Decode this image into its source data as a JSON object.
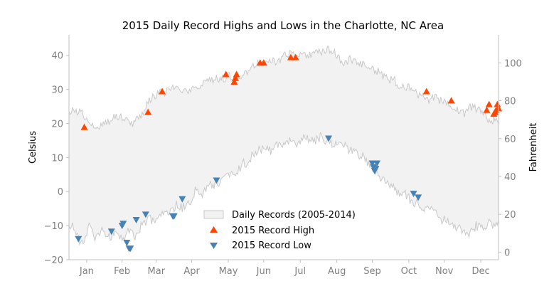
{
  "chart_data": {
    "type": "line",
    "title": "2015 Daily Record Highs and Lows in the Charlotte, NC Area",
    "xlabel": "",
    "ylabel": "Celsius",
    "y2label": "Fahrenheit",
    "ylim": [
      -20,
      46
    ],
    "y2lim": [
      -4,
      114.8
    ],
    "yticks": [
      -20,
      -10,
      0,
      10,
      20,
      30,
      40
    ],
    "y2ticks": [
      0,
      20,
      40,
      60,
      80,
      100
    ],
    "xlim": [
      1,
      365
    ],
    "x_ticks": [
      {
        "label": "Jan",
        "day": 16
      },
      {
        "label": "Feb",
        "day": 46
      },
      {
        "label": "Mar",
        "day": 75
      },
      {
        "label": "Apr",
        "day": 105
      },
      {
        "label": "May",
        "day": 136
      },
      {
        "label": "Jun",
        "day": 166
      },
      {
        "label": "Jul",
        "day": 197
      },
      {
        "label": "Aug",
        "day": 228
      },
      {
        "label": "Sep",
        "day": 258
      },
      {
        "label": "Oct",
        "day": 289
      },
      {
        "label": "Nov",
        "day": 319
      },
      {
        "label": "Dec",
        "day": 350
      }
    ],
    "band_high_knots": [
      [
        1,
        22.5
      ],
      [
        5,
        24
      ],
      [
        12,
        23
      ],
      [
        20,
        20
      ],
      [
        28,
        19
      ],
      [
        35,
        21
      ],
      [
        40,
        22
      ],
      [
        48,
        22
      ],
      [
        55,
        20
      ],
      [
        63,
        23
      ],
      [
        68,
        26
      ],
      [
        73,
        28
      ],
      [
        80,
        29
      ],
      [
        88,
        30
      ],
      [
        95,
        30
      ],
      [
        100,
        29
      ],
      [
        107,
        30
      ],
      [
        115,
        32
      ],
      [
        123,
        33
      ],
      [
        130,
        33
      ],
      [
        138,
        34
      ],
      [
        145,
        32
      ],
      [
        150,
        35
      ],
      [
        157,
        37
      ],
      [
        162,
        38
      ],
      [
        170,
        39
      ],
      [
        178,
        38
      ],
      [
        185,
        40
      ],
      [
        192,
        41
      ],
      [
        200,
        40
      ],
      [
        207,
        40
      ],
      [
        214,
        41
      ],
      [
        221,
        42
      ],
      [
        228,
        40
      ],
      [
        234,
        38
      ],
      [
        240,
        39
      ],
      [
        246,
        37
      ],
      [
        252,
        37
      ],
      [
        258,
        36
      ],
      [
        264,
        35
      ],
      [
        270,
        33
      ],
      [
        276,
        33
      ],
      [
        282,
        30
      ],
      [
        288,
        31
      ],
      [
        294,
        29
      ],
      [
        300,
        28
      ],
      [
        306,
        27
      ],
      [
        312,
        28
      ],
      [
        318,
        26
      ],
      [
        324,
        26
      ],
      [
        330,
        24
      ],
      [
        336,
        23
      ],
      [
        342,
        25
      ],
      [
        348,
        24
      ],
      [
        354,
        22
      ],
      [
        358,
        21
      ],
      [
        362,
        21
      ],
      [
        365,
        21
      ]
    ],
    "band_low_knots": [
      [
        1,
        -9
      ],
      [
        5,
        -11
      ],
      [
        10,
        -15
      ],
      [
        14,
        -14
      ],
      [
        18,
        -10
      ],
      [
        24,
        -14
      ],
      [
        30,
        -11
      ],
      [
        36,
        -14
      ],
      [
        41,
        -11
      ],
      [
        46,
        -14
      ],
      [
        52,
        -11
      ],
      [
        57,
        -13
      ],
      [
        63,
        -10
      ],
      [
        68,
        -8
      ],
      [
        73,
        -9
      ],
      [
        80,
        -7
      ],
      [
        86,
        -6
      ],
      [
        92,
        -4
      ],
      [
        97,
        -5
      ],
      [
        103,
        -3
      ],
      [
        108,
        0
      ],
      [
        113,
        -1
      ],
      [
        118,
        1
      ],
      [
        123,
        2
      ],
      [
        128,
        3
      ],
      [
        133,
        4
      ],
      [
        138,
        6
      ],
      [
        143,
        5
      ],
      [
        148,
        8
      ],
      [
        153,
        9
      ],
      [
        158,
        11
      ],
      [
        163,
        12
      ],
      [
        168,
        13
      ],
      [
        173,
        12
      ],
      [
        178,
        14
      ],
      [
        184,
        14
      ],
      [
        190,
        15
      ],
      [
        196,
        14
      ],
      [
        202,
        16
      ],
      [
        208,
        15
      ],
      [
        214,
        16
      ],
      [
        220,
        15
      ],
      [
        226,
        14
      ],
      [
        232,
        14
      ],
      [
        238,
        12
      ],
      [
        244,
        11
      ],
      [
        250,
        10
      ],
      [
        256,
        8
      ],
      [
        262,
        6
      ],
      [
        268,
        3
      ],
      [
        274,
        2
      ],
      [
        280,
        0
      ],
      [
        286,
        -1
      ],
      [
        292,
        -3
      ],
      [
        298,
        -4
      ],
      [
        304,
        -5
      ],
      [
        310,
        -6
      ],
      [
        316,
        -8
      ],
      [
        322,
        -9
      ],
      [
        328,
        -10
      ],
      [
        334,
        -11
      ],
      [
        340,
        -12
      ],
      [
        346,
        -10
      ],
      [
        352,
        -11
      ],
      [
        358,
        -9
      ],
      [
        362,
        -10
      ],
      [
        365,
        -8
      ]
    ],
    "series": [
      {
        "name": "Daily Records (2005-2014)",
        "kind": "band",
        "color": "#f2f2f2",
        "edge": "#c8c8c8"
      },
      {
        "name": "2015 Record High",
        "kind": "scatter",
        "marker": "triangle-up",
        "color": "#ff4500",
        "points": [
          [
            14,
            18.9
          ],
          [
            68,
            23.3
          ],
          [
            80,
            29.4
          ],
          [
            134,
            34.4
          ],
          [
            141,
            32.2
          ],
          [
            142,
            33.3
          ],
          [
            143,
            34.4
          ],
          [
            163,
            37.8
          ],
          [
            166,
            37.8
          ],
          [
            189,
            39.4
          ],
          [
            193,
            39.4
          ],
          [
            304,
            29.4
          ],
          [
            325,
            26.7
          ],
          [
            355,
            23.9
          ],
          [
            357,
            25.6
          ],
          [
            361,
            22.8
          ],
          [
            362,
            23.3
          ],
          [
            363,
            23.9
          ],
          [
            364,
            25.6
          ],
          [
            365,
            24.4
          ]
        ]
      },
      {
        "name": "2015 Record Low",
        "kind": "scatter",
        "marker": "triangle-down",
        "color": "#4682b4",
        "points": [
          [
            9,
            -13.9
          ],
          [
            37,
            -11.7
          ],
          [
            46,
            -10.0
          ],
          [
            47,
            -9.4
          ],
          [
            50,
            -15.0
          ],
          [
            52,
            -16.7
          ],
          [
            53,
            -16.7
          ],
          [
            58,
            -8.3
          ],
          [
            66,
            -6.7
          ],
          [
            89,
            -7.2
          ],
          [
            90,
            -7.2
          ],
          [
            97,
            -2.2
          ],
          [
            126,
            3.3
          ],
          [
            221,
            15.6
          ],
          [
            258,
            8.3
          ],
          [
            259,
            7.2
          ],
          [
            260,
            6.1
          ],
          [
            261,
            6.7
          ],
          [
            262,
            8.3
          ],
          [
            293,
            -0.6
          ],
          [
            297,
            -1.7
          ]
        ]
      }
    ],
    "legend": {
      "placement": "lower-center",
      "entries": [
        "Daily Records (2005-2014)",
        "2015 Record High",
        "2015 Record Low"
      ]
    },
    "grid": false
  }
}
